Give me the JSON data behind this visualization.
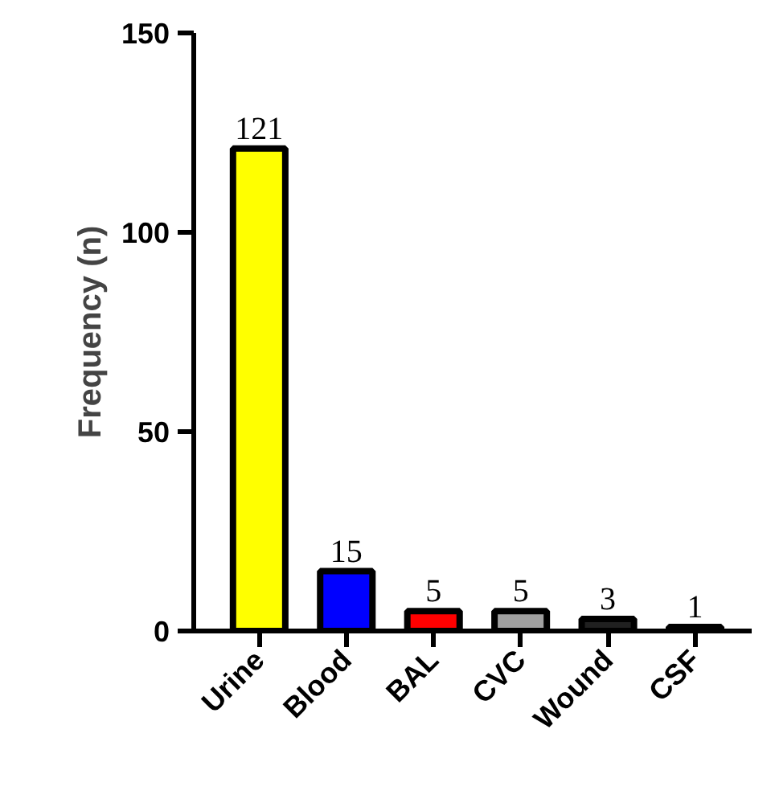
{
  "chart_data": {
    "type": "bar",
    "ylabel": "Frequency (n)",
    "categories": [
      "Urine",
      "Blood",
      "BAL",
      "CVC",
      "Wound",
      "CSF"
    ],
    "values": [
      121,
      15,
      5,
      5,
      3,
      1
    ],
    "colors": [
      "#ffff00",
      "#0000ff",
      "#ff0000",
      "#a0a0a0",
      "#202020",
      "#202020"
    ],
    "ylim": [
      0,
      150
    ],
    "yticks": [
      0,
      50,
      100,
      150
    ],
    "grid": false,
    "data_labels": true
  }
}
